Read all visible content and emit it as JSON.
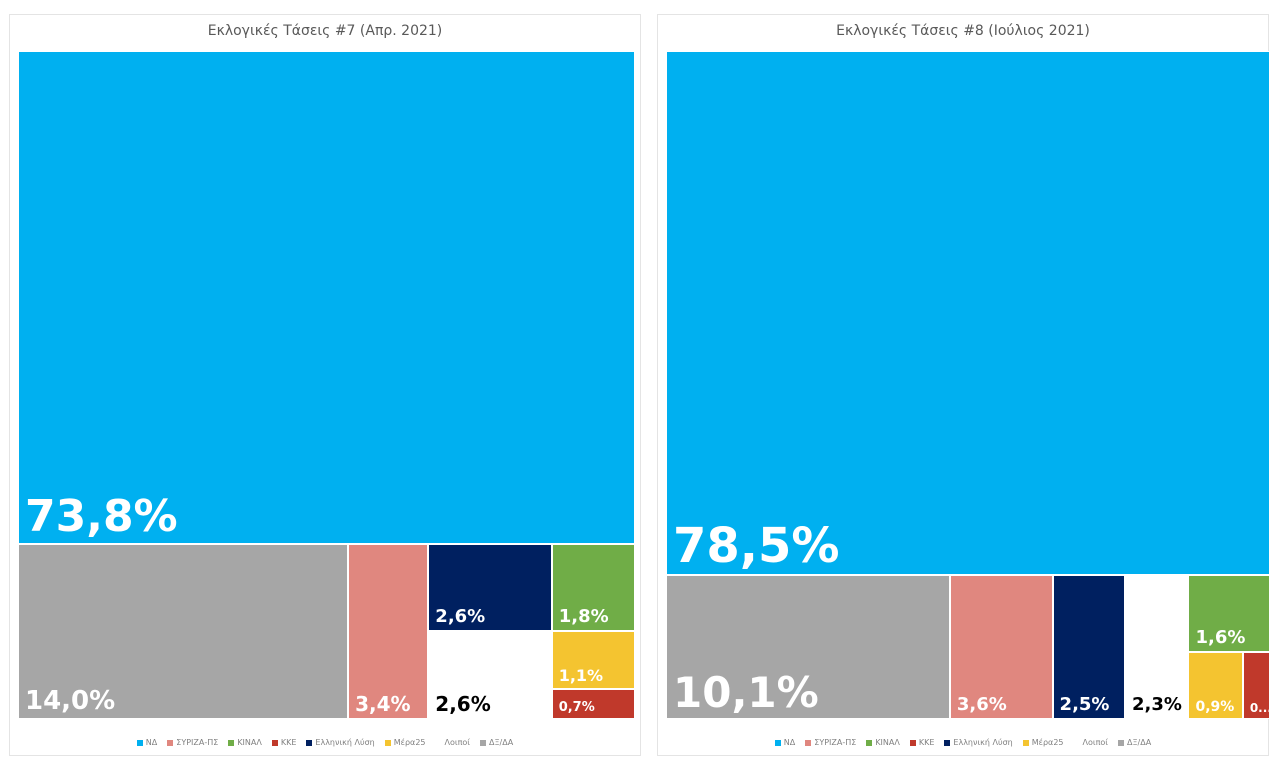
{
  "chart_data": [
    {
      "type": "treemap",
      "title": "Εκλογικές Τάσεις #7 (Απρ. 2021)",
      "categories": [
        "ΝΔ",
        "ΣΥΡΙΖΑ-ΠΣ",
        "ΚΙΝΑΛ",
        "ΚΚΕ",
        "Ελληνική Λύση",
        "Μέρα25",
        "Λοιποί",
        "ΔΞ/ΔΑ"
      ],
      "values": [
        73.8,
        3.4,
        1.8,
        0.7,
        2.6,
        1.1,
        2.6,
        14.0
      ],
      "data_labels": [
        "73,8%",
        "3,4%",
        "1,8%",
        "0,7%",
        "2,6%",
        "1,1%",
        "2,6%",
        "14,0%"
      ],
      "colors": [
        "#00B0F0",
        "#E0877F",
        "#70AD47",
        "#C0392B",
        "#002060",
        "#F4C430",
        "#FFFFFF",
        "#A6A6A6"
      ],
      "legend": "bottom"
    },
    {
      "type": "treemap",
      "title": "Εκλογικές Τάσεις #8 (Ιούλιος 2021)",
      "categories": [
        "ΝΔ",
        "ΣΥΡΙΖΑ-ΠΣ",
        "ΚΙΝΑΛ",
        "ΚΚΕ",
        "Ελληνική Λύση",
        "Μέρα25",
        "Λοιποί",
        "ΔΞ/ΔΑ"
      ],
      "values": [
        78.5,
        3.6,
        1.6,
        0.5,
        2.5,
        0.9,
        2.3,
        10.1
      ],
      "data_labels": [
        "78,5%",
        "3,6%",
        "1,6%",
        "0...",
        "2,5%",
        "0,9%",
        "2,3%",
        "10,1%"
      ],
      "colors": [
        "#00B0F0",
        "#E0877F",
        "#70AD47",
        "#C0392B",
        "#002060",
        "#F4C430",
        "#FFFFFF",
        "#A6A6A6"
      ],
      "legend": "bottom"
    }
  ]
}
